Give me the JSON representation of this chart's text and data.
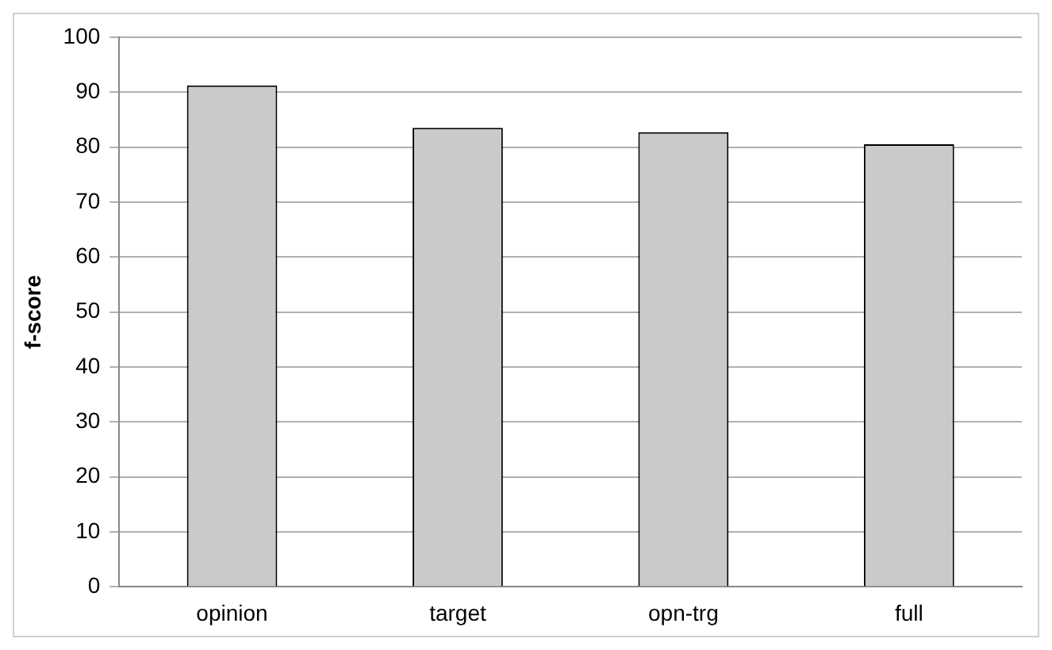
{
  "chart_data": {
    "type": "bar",
    "ylabel": "f-score",
    "categories": [
      "opinion",
      "target",
      "opn-trg",
      "full"
    ],
    "values": [
      91.2,
      83.5,
      82.7,
      80.5
    ],
    "color": "#cbcac8",
    "ylim": [
      0,
      100
    ],
    "yticks": [
      0,
      10,
      20,
      30,
      40,
      50,
      60,
      70,
      80,
      90,
      100
    ],
    "grid": "y"
  }
}
